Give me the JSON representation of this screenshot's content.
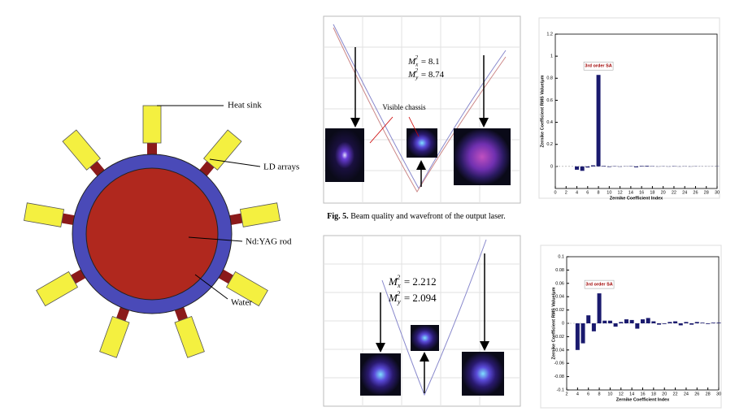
{
  "diagram": {
    "labels": {
      "heat_sink": "Heat sink",
      "ld_arrays": "LD arrays",
      "rod": "Nd:YAG rod",
      "water": "Water"
    }
  },
  "beam_plots": [
    {
      "mx": {
        "symbol": "M",
        "sub": "x",
        "sup": "2",
        "rest": "= 8.1"
      },
      "my": {
        "symbol": "M",
        "sub": "y",
        "sup": "2",
        "rest": "= 8.74"
      },
      "annotation": "Visible chassis"
    },
    {
      "mx": {
        "symbol": "M",
        "sub": "x",
        "sup": "2",
        "rest": "= 2.212"
      },
      "my": {
        "symbol": "M",
        "sub": "y",
        "sup": "2",
        "rest": "= 2.094"
      }
    }
  ],
  "caption": {
    "label": "Fig. 5.",
    "text": "Beam quality and wavefront of the output laser."
  },
  "chart_data": [
    {
      "type": "bar",
      "color": "#1a1a6e",
      "x": [
        4,
        5,
        6,
        7,
        8,
        9,
        10,
        11,
        12,
        13,
        14,
        15,
        16,
        17,
        18,
        19,
        20,
        21,
        22,
        23,
        24,
        25,
        26,
        27,
        28,
        29,
        30
      ],
      "values": [
        -0.03,
        -0.04,
        -0.01,
        0.01,
        0.83,
        0.005,
        -0.005,
        0.003,
        -0.003,
        0.002,
        0.003,
        -0.008,
        0.005,
        0.006,
        0.003,
        -0.002,
        0.002,
        -0.002,
        0.003,
        -0.002,
        0.002,
        -0.002,
        0.002,
        0.001,
        -0.001,
        0.001,
        0.002
      ],
      "xlim": [
        0,
        30
      ],
      "xticks": [
        0,
        2,
        4,
        6,
        8,
        10,
        12,
        14,
        16,
        18,
        20,
        22,
        24,
        26,
        28,
        30
      ],
      "ylim": [
        -0.2,
        1.2
      ],
      "yticks": [
        0,
        0.2,
        0.4,
        0.6,
        0.8,
        1,
        1.2
      ],
      "xlabel": "Zernike Coefficient Index",
      "ylabel": "Zernike Coefficient RMS Value/μm",
      "annotation": "3rd order SA"
    },
    {
      "type": "bar",
      "color": "#1a1a6e",
      "x": [
        4,
        5,
        6,
        7,
        8,
        9,
        10,
        11,
        12,
        13,
        14,
        15,
        16,
        17,
        18,
        19,
        20,
        21,
        22,
        23,
        24,
        25,
        26,
        27,
        28,
        29,
        30
      ],
      "values": [
        -0.04,
        -0.03,
        0.012,
        -0.012,
        0.045,
        0.004,
        0.004,
        -0.005,
        0.002,
        0.006,
        0.005,
        -0.008,
        0.006,
        0.008,
        0.003,
        -0.002,
        -0.001,
        0.002,
        0.003,
        -0.003,
        0.002,
        -0.002,
        0.002,
        0.001,
        -0.001,
        0.001,
        0.001
      ],
      "xlim": [
        2,
        30
      ],
      "xticks": [
        2,
        4,
        6,
        8,
        10,
        12,
        14,
        16,
        18,
        20,
        22,
        24,
        26,
        28,
        30
      ],
      "ylim": [
        -0.1,
        0.1
      ],
      "yticks": [
        -0.1,
        -0.08,
        -0.06,
        -0.04,
        -0.02,
        0,
        0.02,
        0.04,
        0.06,
        0.08,
        0.1
      ],
      "xlabel": "Zernike Coefficient Index",
      "ylabel": "Zernike Coefficient RMS Value/μm",
      "annotation": "3rd order SA"
    }
  ]
}
